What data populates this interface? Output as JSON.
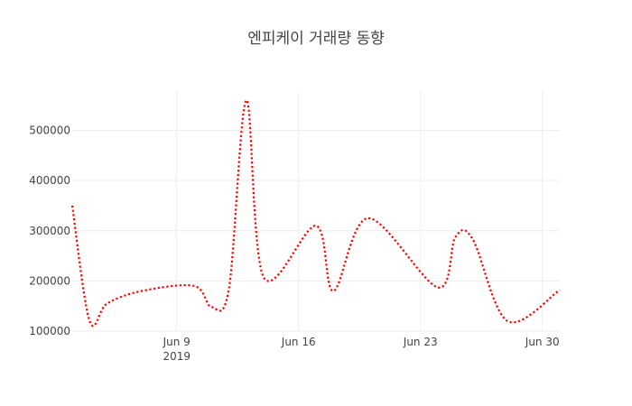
{
  "chart_data": {
    "type": "line",
    "title": "엔피케이 거래량 동향",
    "xlabel": "",
    "ylabel": "",
    "x_ticks": [
      {
        "date": "2019-06-09",
        "label": "Jun 9",
        "sublabel": "2019"
      },
      {
        "date": "2019-06-16",
        "label": "Jun 16",
        "sublabel": ""
      },
      {
        "date": "2019-06-23",
        "label": "Jun 23",
        "sublabel": ""
      },
      {
        "date": "2019-06-30",
        "label": "Jun 30",
        "sublabel": ""
      }
    ],
    "y_ticks": [
      100000,
      200000,
      300000,
      400000,
      500000
    ],
    "y_tick_labels": [
      "100000",
      "200000",
      "300000",
      "400000",
      "500000"
    ],
    "xlim": [
      "2019-06-03",
      "2019-07-01"
    ],
    "ylim": [
      100000,
      580000
    ],
    "series": [
      {
        "name": "거래량",
        "color": "#ff0000",
        "style": "dotted",
        "x": [
          "2019-06-03",
          "2019-06-04",
          "2019-06-05",
          "2019-06-07",
          "2019-06-10",
          "2019-06-11",
          "2019-06-12",
          "2019-06-13",
          "2019-06-14",
          "2019-06-17",
          "2019-06-18",
          "2019-06-20",
          "2019-06-24",
          "2019-06-25",
          "2019-06-26",
          "2019-06-28",
          "2019-07-01"
        ],
        "values": [
          350000,
          120000,
          155000,
          180000,
          190000,
          148000,
          185000,
          560000,
          207000,
          310000,
          180000,
          325000,
          187000,
          287000,
          283000,
          120000,
          182000
        ]
      }
    ]
  }
}
